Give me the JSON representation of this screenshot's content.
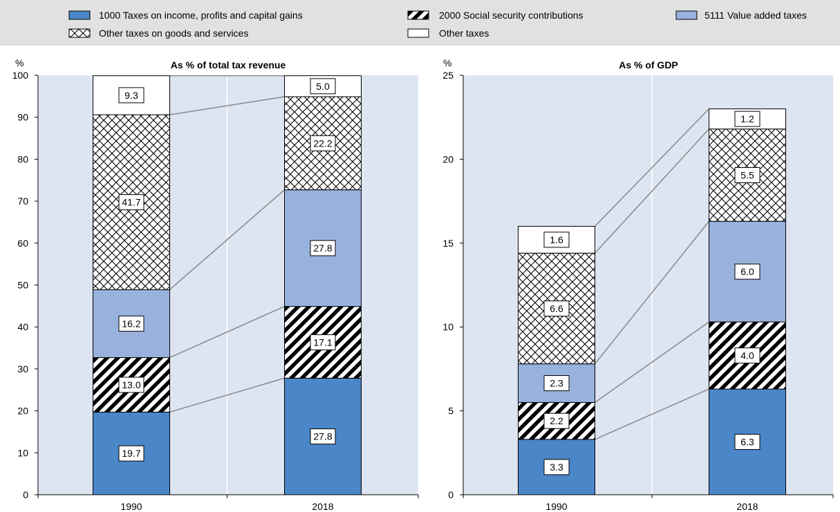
{
  "legend": {
    "items": [
      {
        "label": "1000 Taxes on income, profits and capital gains",
        "swatch": "solid-blue"
      },
      {
        "label": "2000 Social security contributions",
        "swatch": "diagonal-stripes"
      },
      {
        "label": "5111 Value added taxes",
        "swatch": "solid-light-blue"
      },
      {
        "label": "Other taxes on goods and services",
        "swatch": "crosshatch"
      },
      {
        "label": "Other taxes",
        "swatch": "white"
      }
    ]
  },
  "colors": {
    "plot_background": "#dde5f2",
    "legend_background": "#e1e1e1",
    "income": "#4a86c8",
    "vat": "#98b2dd",
    "connector": "#888888"
  },
  "chart_data": [
    {
      "type": "bar",
      "stacked": true,
      "title": "As % of total tax revenue",
      "ylabel": "%",
      "ylim": [
        0,
        100
      ],
      "yticks": [
        0,
        10,
        20,
        30,
        40,
        50,
        60,
        70,
        80,
        90,
        100
      ],
      "categories": [
        "1990",
        "2018"
      ],
      "series": [
        {
          "name": "1000 Taxes on income, profits and capital gains",
          "values": [
            19.7,
            27.8
          ],
          "labels": [
            "19.7",
            "27.8"
          ]
        },
        {
          "name": "2000 Social security contributions",
          "values": [
            13.0,
            17.1
          ],
          "labels": [
            "13.0",
            "17.1"
          ]
        },
        {
          "name": "5111 Value added taxes",
          "values": [
            16.2,
            27.8
          ],
          "labels": [
            "16.2",
            "27.8"
          ]
        },
        {
          "name": "Other taxes on goods and services",
          "values": [
            41.7,
            22.2
          ],
          "labels": [
            "41.7",
            "22.2"
          ]
        },
        {
          "name": "Other taxes",
          "values": [
            9.3,
            5.0
          ],
          "labels": [
            "9.3",
            "5.0"
          ]
        }
      ]
    },
    {
      "type": "bar",
      "stacked": true,
      "title": "As % of GDP",
      "ylabel": "%",
      "ylim": [
        0,
        25
      ],
      "yticks": [
        0,
        5,
        10,
        15,
        20,
        25
      ],
      "categories": [
        "1990",
        "2018"
      ],
      "series": [
        {
          "name": "1000 Taxes on income, profits and capital gains",
          "values": [
            3.3,
            6.3
          ],
          "labels": [
            "3.3",
            "6.3"
          ]
        },
        {
          "name": "2000 Social security contributions",
          "values": [
            2.2,
            4.0
          ],
          "labels": [
            "2.2",
            "4.0"
          ]
        },
        {
          "name": "5111 Value added taxes",
          "values": [
            2.3,
            6.0
          ],
          "labels": [
            "2.3",
            "6.0"
          ]
        },
        {
          "name": "Other taxes on goods and services",
          "values": [
            6.6,
            5.5
          ],
          "labels": [
            "6.6",
            "5.5"
          ]
        },
        {
          "name": "Other taxes",
          "values": [
            1.6,
            1.2
          ],
          "labels": [
            "1.6",
            "1.2"
          ]
        }
      ]
    }
  ]
}
